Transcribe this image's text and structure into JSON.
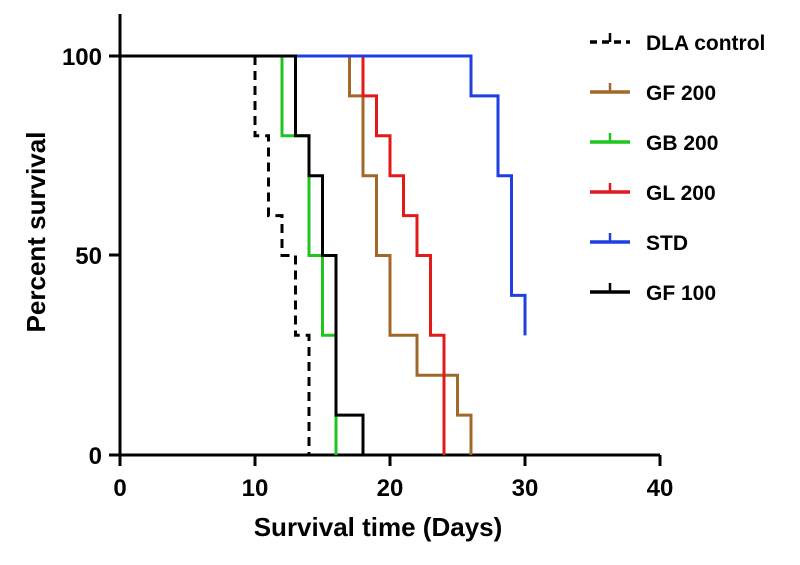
{
  "chart_data": {
    "type": "line",
    "subtype": "kaplan-meier step",
    "title": "",
    "xlabel": "Survival time (Days)",
    "ylabel": "Percent survival",
    "xlim": [
      0,
      40
    ],
    "ylim": [
      0,
      100
    ],
    "xticks": [
      "0",
      "10",
      "20",
      "30",
      "40"
    ],
    "yticks": [
      "0",
      "50",
      "100"
    ],
    "grid": false,
    "legend_position": "right",
    "series": [
      {
        "name": "DLA control",
        "color": "#000000",
        "dash": true,
        "x": [
          0,
          10,
          11,
          12,
          13,
          14
        ],
        "y": [
          100,
          80,
          60,
          50,
          30,
          0
        ]
      },
      {
        "name": "GF 200",
        "color": "#a0692a",
        "dash": false,
        "x": [
          0,
          17,
          18,
          19,
          20,
          22,
          25,
          26
        ],
        "y": [
          100,
          90,
          70,
          50,
          30,
          20,
          10,
          0
        ]
      },
      {
        "name": "GB 200",
        "color": "#1fc41f",
        "dash": false,
        "x": [
          0,
          12,
          14,
          15,
          16
        ],
        "y": [
          100,
          80,
          50,
          30,
          0
        ]
      },
      {
        "name": "GL 200",
        "color": "#e31a1a",
        "dash": false,
        "x": [
          0,
          18,
          19,
          20,
          21,
          22,
          23,
          24
        ],
        "y": [
          100,
          90,
          80,
          70,
          60,
          50,
          30,
          0
        ]
      },
      {
        "name": "STD",
        "color": "#1f3fe0",
        "dash": false,
        "x": [
          0,
          26,
          28,
          29,
          30
        ],
        "y": [
          100,
          90,
          70,
          40,
          30
        ]
      },
      {
        "name": "GF 100",
        "color": "#000000",
        "dash": false,
        "x": [
          0,
          13,
          14,
          15,
          16,
          18
        ],
        "y": [
          100,
          80,
          70,
          50,
          10,
          0
        ]
      }
    ]
  }
}
